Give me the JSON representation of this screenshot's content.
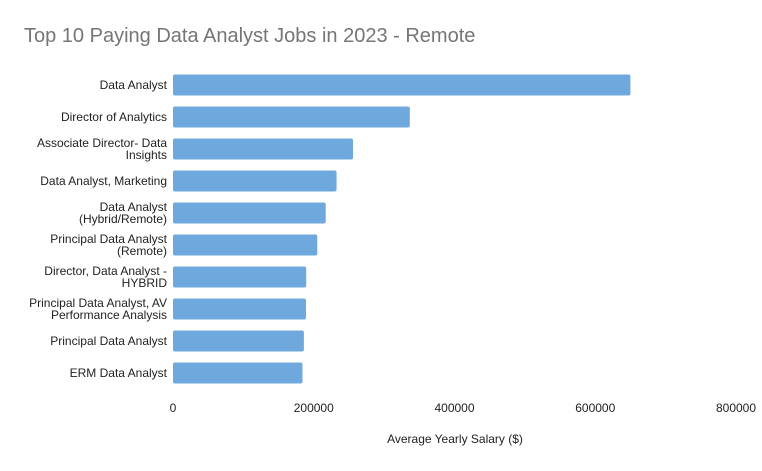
{
  "chart_data": {
    "type": "bar",
    "orientation": "horizontal",
    "title": "Top 10 Paying Data Analyst Jobs in 2023 - Remote",
    "xlabel": "Average Yearly Salary ($)",
    "ylabel": "",
    "categories": [
      [
        "Data Analyst"
      ],
      [
        "Director of Analytics"
      ],
      [
        "Associate Director- Data",
        "Insights"
      ],
      [
        "Data Analyst, Marketing"
      ],
      [
        "Data Analyst",
        "(Hybrid/Remote)"
      ],
      [
        "Principal Data Analyst",
        "(Remote)"
      ],
      [
        "Director, Data Analyst -",
        "HYBRID"
      ],
      [
        "Principal Data Analyst, AV",
        "Performance Analysis"
      ],
      [
        "Principal Data Analyst"
      ],
      [
        "ERM Data Analyst"
      ]
    ],
    "values": [
      650000,
      336500,
      255829,
      232423,
      217000,
      205000,
      189309,
      189000,
      186000,
      184000
    ],
    "xlim": [
      0,
      800000
    ],
    "xticks": [
      "0",
      "200000",
      "400000",
      "600000",
      "800000"
    ],
    "grid": false,
    "legend": "none",
    "bar_color": "#6fa8dc",
    "title_color": "#757575",
    "text_color": "#222222"
  }
}
